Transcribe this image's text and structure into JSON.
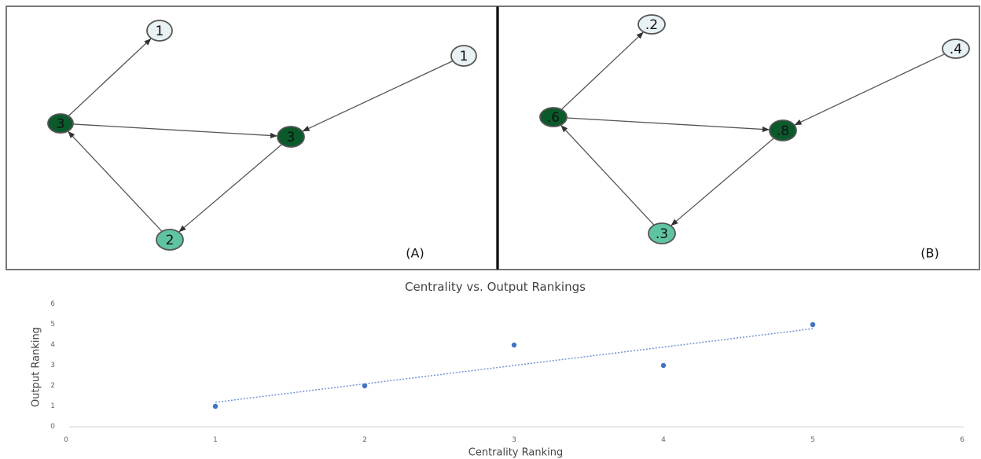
{
  "graph_a": {
    "label": "(A)",
    "nodes": [
      {
        "id": "a1",
        "label": "1",
        "fill": "#e8f1f3"
      },
      {
        "id": "a2",
        "label": "1",
        "fill": "#e8f1f3"
      },
      {
        "id": "a3",
        "label": "3",
        "fill": "#0b5a2c"
      },
      {
        "id": "a4",
        "label": "3",
        "fill": "#0b5a2c"
      },
      {
        "id": "a5",
        "label": "2",
        "fill": "#5fc4a2"
      }
    ],
    "edges": [
      {
        "from": "a3",
        "to": "a1"
      },
      {
        "from": "a3",
        "to": "a4"
      },
      {
        "from": "a2",
        "to": "a4"
      },
      {
        "from": "a4",
        "to": "a5"
      },
      {
        "from": "a5",
        "to": "a3"
      }
    ]
  },
  "graph_b": {
    "label": "(B)",
    "nodes": [
      {
        "id": "b1",
        "label": ".2",
        "fill": "#e8f1f3"
      },
      {
        "id": "b2",
        "label": ".4",
        "fill": "#e8f1f3"
      },
      {
        "id": "b3",
        "label": ".6",
        "fill": "#0b5a2c"
      },
      {
        "id": "b4",
        "label": ".8",
        "fill": "#0b5a2c"
      },
      {
        "id": "b5",
        "label": ".3",
        "fill": "#5fc4a2"
      }
    ],
    "edges": [
      {
        "from": "b3",
        "to": "b1"
      },
      {
        "from": "b3",
        "to": "b4"
      },
      {
        "from": "b2",
        "to": "b4"
      },
      {
        "from": "b4",
        "to": "b5"
      },
      {
        "from": "b5",
        "to": "b3"
      }
    ]
  },
  "chart_data": {
    "type": "scatter",
    "title": "Centrality vs. Output Rankings",
    "xlabel": "Centrality Ranking",
    "ylabel": "Output Ranking",
    "xlim": [
      0,
      6
    ],
    "ylim": [
      0,
      6
    ],
    "xticks": [
      0,
      1,
      2,
      3,
      4,
      5,
      6
    ],
    "yticks": [
      0,
      1,
      2,
      3,
      4,
      5,
      6
    ],
    "points": [
      {
        "x": 1,
        "y": 1
      },
      {
        "x": 2,
        "y": 2
      },
      {
        "x": 3,
        "y": 4
      },
      {
        "x": 4,
        "y": 3
      },
      {
        "x": 5,
        "y": 5
      }
    ],
    "trendline": {
      "type": "linear",
      "style": "dotted",
      "from": {
        "x": 1,
        "y": 1.2
      },
      "to": {
        "x": 5,
        "y": 4.8
      }
    },
    "point_color": "#4472c4",
    "grid": false,
    "legend": "none"
  }
}
